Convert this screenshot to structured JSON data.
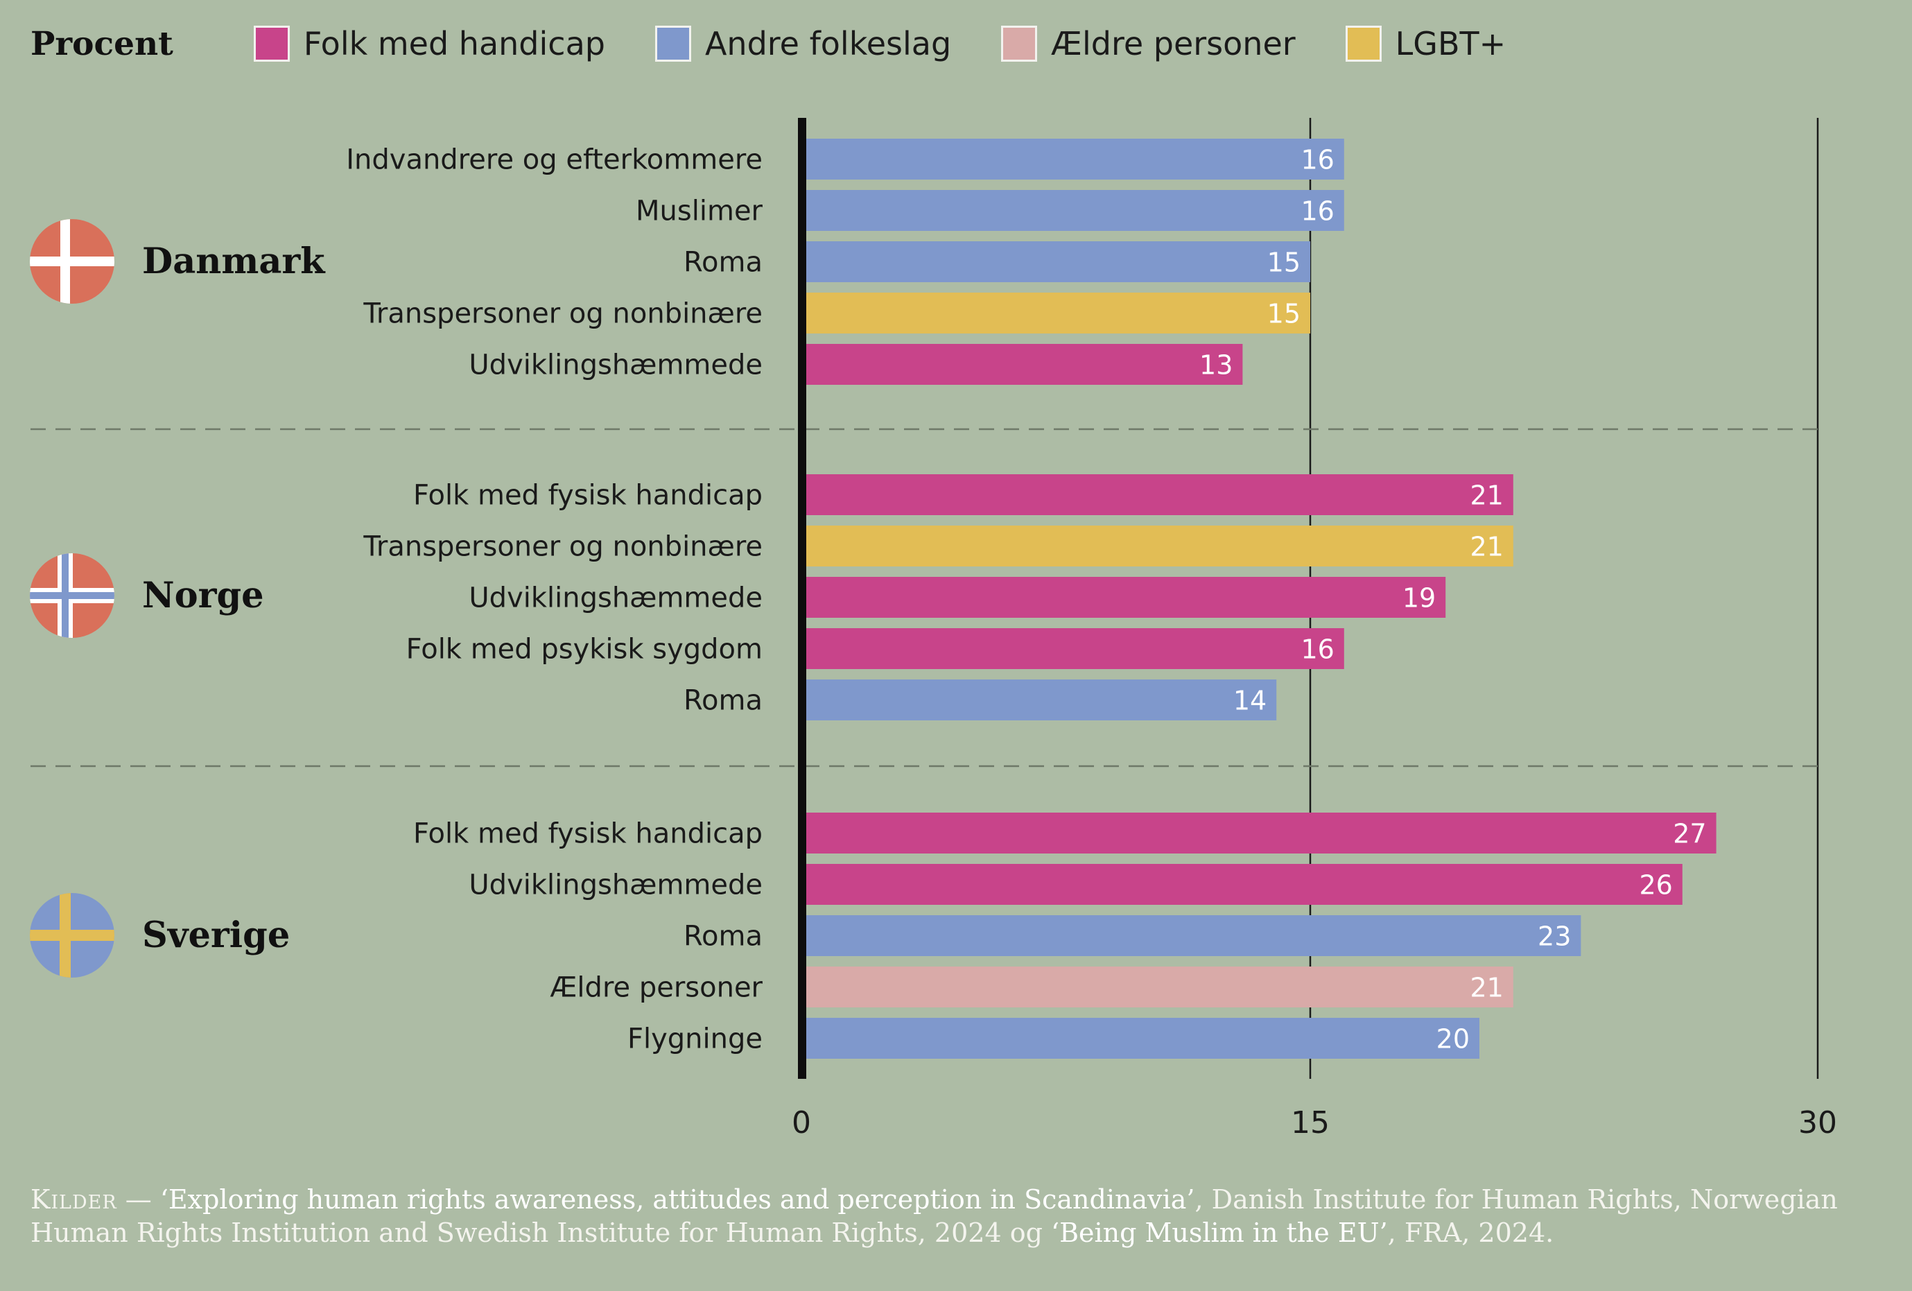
{
  "chart_data": {
    "type": "bar",
    "orientation": "horizontal",
    "unit_label": "Procent",
    "xlim": [
      0,
      30
    ],
    "x_ticks": [
      0,
      15,
      30
    ],
    "grid": true,
    "legend": {
      "placement": "top",
      "entries": [
        {
          "key": "handicap",
          "label": "Folk med handicap",
          "color": "#c8448a"
        },
        {
          "key": "folkeslag",
          "label": "Andre folkeslag",
          "color": "#7f98cc"
        },
        {
          "key": "aeldre",
          "label": "Ældre personer",
          "color": "#d9aaa8"
        },
        {
          "key": "lgbt",
          "label": "LGBT+",
          "color": "#e2bd55"
        }
      ]
    },
    "groups": [
      {
        "name": "Danmark",
        "flag": "danish-flag-icon",
        "bars": [
          {
            "label": "Indvandrere og efterkommere",
            "value": 16,
            "category": "folkeslag"
          },
          {
            "label": "Muslimer",
            "value": 16,
            "category": "folkeslag"
          },
          {
            "label": "Roma",
            "value": 15,
            "category": "folkeslag"
          },
          {
            "label": "Transpersoner og nonbinære",
            "value": 15,
            "category": "lgbt"
          },
          {
            "label": "Udviklingshæmmede",
            "value": 13,
            "category": "handicap"
          }
        ]
      },
      {
        "name": "Norge",
        "flag": "norwegian-flag-icon",
        "bars": [
          {
            "label": "Folk med fysisk handicap",
            "value": 21,
            "category": "handicap"
          },
          {
            "label": "Transpersoner og nonbinære",
            "value": 21,
            "category": "lgbt"
          },
          {
            "label": "Udviklingshæmmede",
            "value": 19,
            "category": "handicap"
          },
          {
            "label": "Folk med psykisk sygdom",
            "value": 16,
            "category": "handicap"
          },
          {
            "label": "Roma",
            "value": 14,
            "category": "folkeslag"
          }
        ]
      },
      {
        "name": "Sverige",
        "flag": "swedish-flag-icon",
        "bars": [
          {
            "label": "Folk med fysisk handicap",
            "value": 27,
            "category": "handicap"
          },
          {
            "label": "Udviklingshæmmede",
            "value": 26,
            "category": "handicap"
          },
          {
            "label": "Roma",
            "value": 23,
            "category": "folkeslag"
          },
          {
            "label": "Ældre personer",
            "value": 21,
            "category": "aeldre"
          },
          {
            "label": "Flygninge",
            "value": 20,
            "category": "folkeslag"
          }
        ]
      }
    ]
  },
  "flag_colors": {
    "danmark": {
      "field": "#d9705a",
      "cross": "#ffffff"
    },
    "norge": {
      "field": "#d9705a",
      "cross_outer": "#ffffff",
      "cross_inner": "#7f98cc"
    },
    "sverige": {
      "field": "#7f98cc",
      "cross": "#e2bd55"
    }
  },
  "source": {
    "label": "Kilder",
    "dash": " — ",
    "title1": "‘Exploring human rights awareness, attitudes and perception in Scandinavia’",
    "text1": ", Danish Institute for Human Rights, Norwegian Human Rights Institution and Swedish Institute for Human Rights, 2024 og ",
    "title2": "‘Being Muslim in the EU’",
    "text2": ", FRA, 2024."
  }
}
